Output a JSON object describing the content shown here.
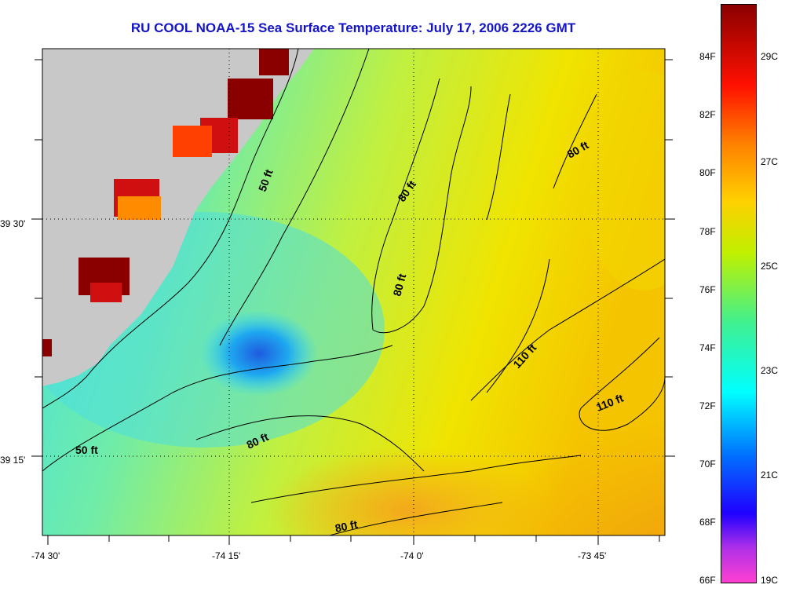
{
  "title": "RU COOL  NOAA-15  Sea Surface Temperature:  July 17, 2006 2226 GMT",
  "map": {
    "land_color": "#c8c8c8",
    "water_gradient_colors": [
      "#3ad9ff",
      "#60f0b0",
      "#b8f040",
      "#f2e800",
      "#f5b800",
      "#f09a10"
    ],
    "cold_spot_color": "#2a6ae0",
    "warm_land_patch_colors": [
      "#8a0000",
      "#d01010",
      "#ff4000",
      "#ff8c00"
    ]
  },
  "axes": {
    "x_ticks": [
      "-74 30'",
      "-74 15'",
      "-74 0'",
      "-73 45'"
    ],
    "y_ticks": [
      "39 30'",
      "39 15'"
    ]
  },
  "contour_labels": [
    "50 ft",
    "80 ft",
    "80 ft",
    "80 ft",
    "50 ft",
    "80 ft",
    "110 ft",
    "110 ft",
    "80 ft"
  ],
  "colorbar": {
    "fahrenheit_labels": [
      "84F",
      "82F",
      "80F",
      "78F",
      "76F",
      "74F",
      "72F",
      "70F",
      "68F",
      "66F"
    ],
    "celsius_labels": [
      "29C",
      "27C",
      "25C",
      "23C",
      "21C",
      "19C"
    ],
    "gradient_colors": [
      "#ff40d0",
      "#8030e0",
      "#0000ff",
      "#00a0ff",
      "#00ffff",
      "#40f080",
      "#c0f000",
      "#ffd000",
      "#ff8000",
      "#ff0000",
      "#c00000",
      "#8a0000"
    ]
  }
}
